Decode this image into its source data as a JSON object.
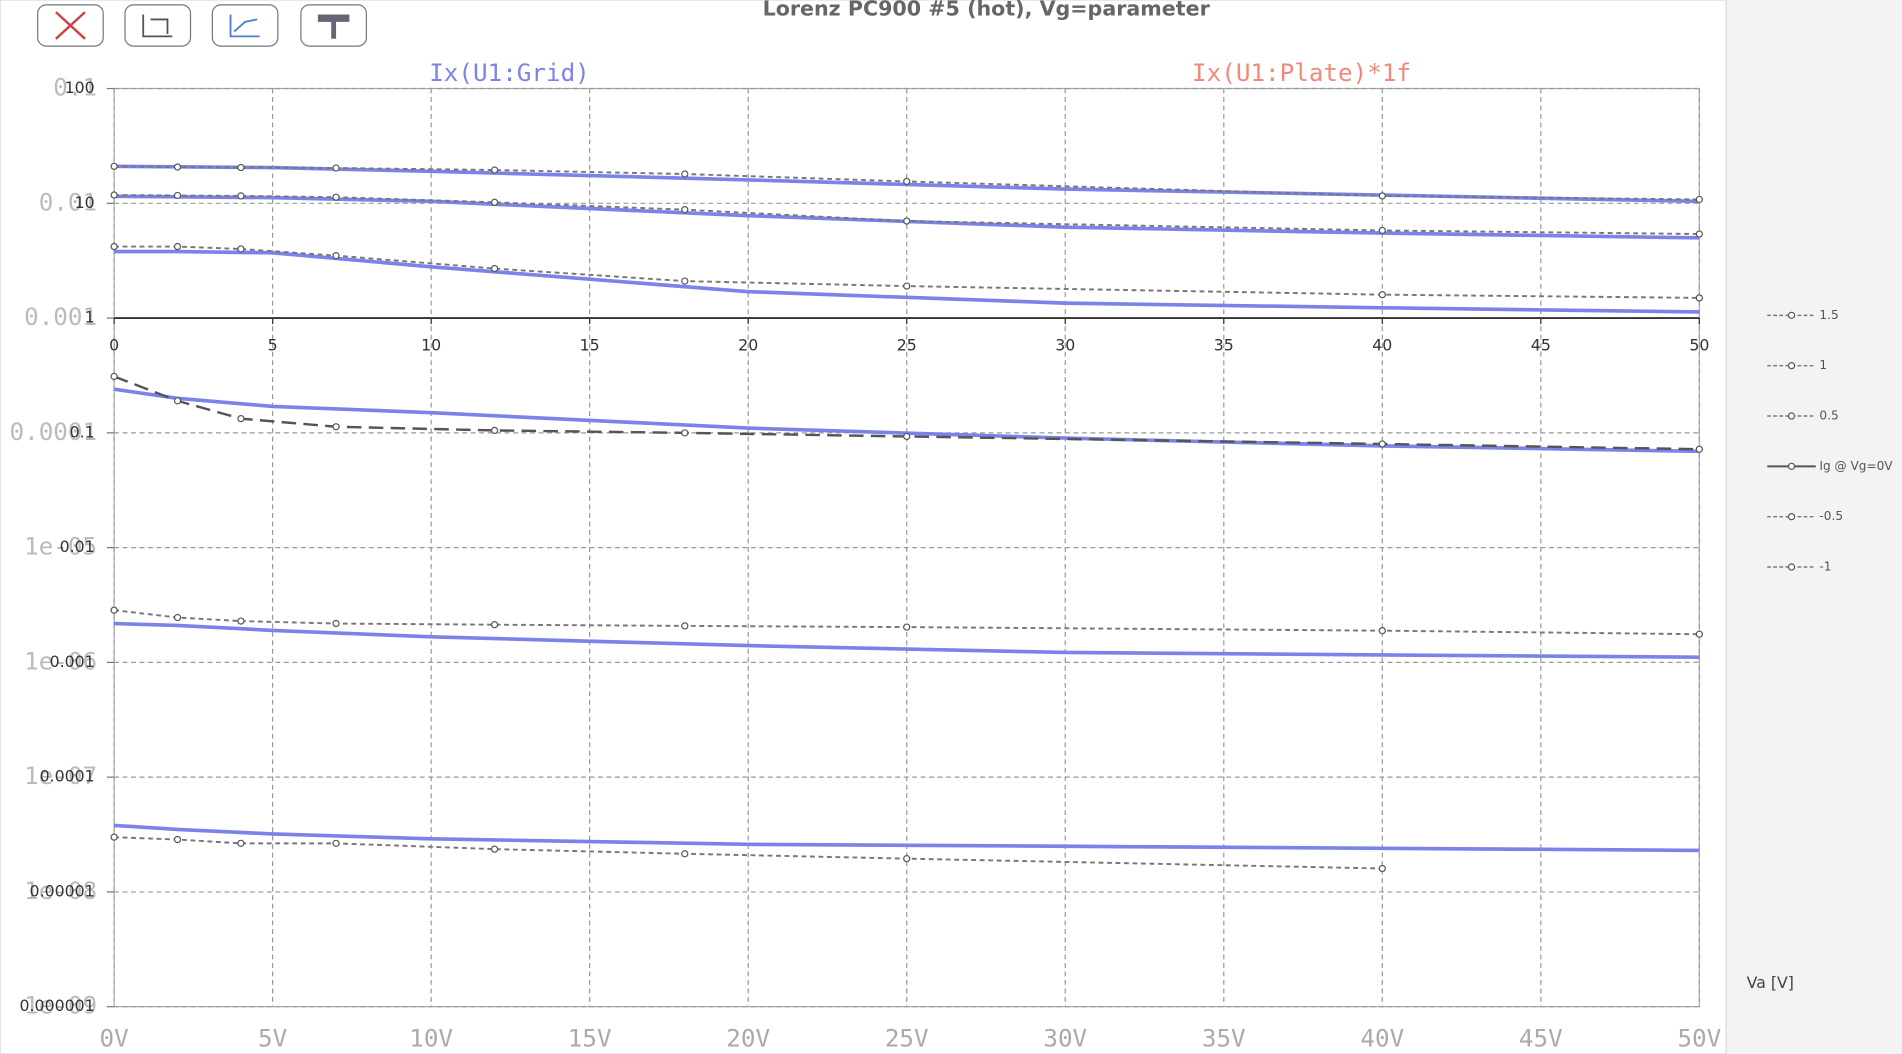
{
  "chart_data": {
    "type": "line",
    "title": "Lorenz PC900 #5 (hot), Vg=parameter",
    "x_label": "Va [V]",
    "yscale": "log",
    "grid": true,
    "legend_position": "right",
    "xlim": [
      0,
      50
    ],
    "ylim": [
      1e-06,
      100
    ],
    "xticks": [
      {
        "value": 0,
        "label": "0V"
      },
      {
        "value": 5,
        "label": "5V"
      },
      {
        "value": 10,
        "label": "10V"
      },
      {
        "value": 15,
        "label": "15V"
      },
      {
        "value": 20,
        "label": "20V"
      },
      {
        "value": 25,
        "label": "25V"
      },
      {
        "value": 30,
        "label": "30V"
      },
      {
        "value": 35,
        "label": "35V"
      },
      {
        "value": 40,
        "label": "40V"
      },
      {
        "value": 45,
        "label": "45V"
      },
      {
        "value": 50,
        "label": "50V"
      }
    ],
    "inner_xticks": [
      0,
      5,
      10,
      15,
      20,
      25,
      30,
      35,
      40,
      45,
      50
    ],
    "yticks": [
      100,
      10,
      1,
      0.1,
      0.01,
      0.001,
      0.0001,
      1e-05,
      1e-06
    ],
    "y2lim": [
      1e-09,
      0.1
    ],
    "y2ticks": [
      0.1,
      0.01,
      0.001,
      0.0001,
      {
        "value": 1e-05,
        "label": "1e-05"
      },
      {
        "value": 1e-06,
        "label": "1e-06"
      },
      {
        "value": 1e-07,
        "label": "1e-07"
      },
      {
        "value": 1e-08,
        "label": "1e-08"
      },
      {
        "value": 1e-09,
        "label": "1e-09"
      }
    ],
    "traces": [
      {
        "name": "Ix(U1:Grid)",
        "color": "#7b83ea",
        "x": [
          0,
          2,
          5,
          10,
          20,
          30,
          40,
          50
        ],
        "steps": [
          [
            21,
            20.8,
            20.5,
            19,
            16,
            13.3,
            11.8,
            10.4
          ],
          [
            11.5,
            11.4,
            11.2,
            10.4,
            7.8,
            6.2,
            5.5,
            5.0
          ],
          [
            3.8,
            3.8,
            3.7,
            2.8,
            1.7,
            1.35,
            1.23,
            1.13
          ],
          [
            0.24,
            0.2,
            0.17,
            0.15,
            0.11,
            0.09,
            0.077,
            0.069
          ],
          [
            0.00218,
            0.0021,
            0.0019,
            0.00167,
            0.0014,
            0.00122,
            0.00116,
            0.00111
          ],
          [
            3.8e-05,
            3.5e-05,
            3.2e-05,
            2.9e-05,
            2.6e-05,
            2.5e-05,
            2.4e-05,
            2.3e-05
          ]
        ]
      },
      {
        "name": "Ix(U1:Plate)*1f",
        "color": "#f08a78"
      }
    ],
    "x": [
      0,
      2,
      4,
      7,
      12,
      18,
      25,
      40,
      50
    ],
    "series": [
      {
        "name": "1.5",
        "color": "#777777",
        "values": [
          21,
          20.7,
          20.5,
          20.3,
          19.5,
          18,
          15.5,
          11.6,
          10.8
        ]
      },
      {
        "name": "1",
        "color": "#777777",
        "values": [
          11.8,
          11.7,
          11.6,
          11.3,
          10.2,
          8.8,
          7.0,
          5.8,
          5.4
        ]
      },
      {
        "name": "0.5",
        "color": "#777777",
        "values": [
          4.2,
          4.2,
          4.0,
          3.5,
          2.7,
          2.1,
          1.9,
          1.6,
          1.5
        ]
      },
      {
        "name": "Ig @ Vg=0V",
        "color": "#555555",
        "values": [
          0.31,
          0.19,
          0.133,
          0.113,
          0.105,
          0.1,
          0.093,
          0.08,
          0.072
        ]
      },
      {
        "name": "-0.5",
        "color": "#777777",
        "values": [
          0.00285,
          0.00246,
          0.00229,
          0.00218,
          0.00213,
          0.00208,
          0.00203,
          0.00189,
          0.00176
        ]
      },
      {
        "name": "-1",
        "color": "#777777",
        "values": [
          3e-05,
          2.86e-05,
          2.65e-05,
          2.65e-05,
          2.36e-05,
          2.15e-05,
          1.95e-05,
          1.6e-05,
          null
        ]
      }
    ]
  }
}
